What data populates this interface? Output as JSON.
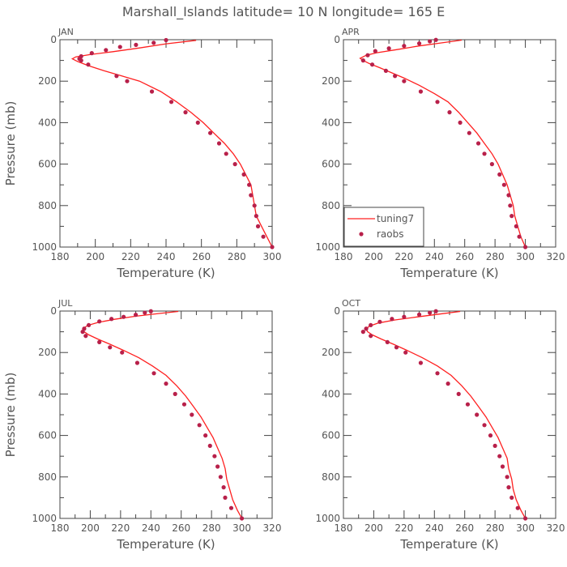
{
  "title": "Marshall_Islands  latitude= 10 N longitude= 165 E",
  "colors": {
    "model": "#ff2020",
    "obs": "#b8204a",
    "axis": "#444444",
    "text": "#555555"
  },
  "legend": {
    "model_label": "tuning7",
    "obs_label": "raobs",
    "location": "APR panel, bottom-left"
  },
  "axes": {
    "xlabel": "Temperature (K)",
    "ylabel": "Pressure (mb)"
  },
  "chart_data": [
    {
      "type": "line",
      "label": "JAN",
      "xlim": [
        180,
        300
      ],
      "ylim": [
        0,
        1000
      ],
      "xticks": [
        180,
        200,
        220,
        240,
        260,
        280,
        300
      ],
      "yticks": [
        0,
        200,
        400,
        600,
        800,
        1000
      ],
      "series": [
        {
          "name": "tuning7",
          "points": [
            [
              257,
              3
            ],
            [
              240,
              20
            ],
            [
              225,
              40
            ],
            [
              210,
              58
            ],
            [
              197,
              72
            ],
            [
              189,
              83
            ],
            [
              187,
              92
            ],
            [
              190,
              105
            ],
            [
              196,
              125
            ],
            [
              205,
              150
            ],
            [
              215,
              175
            ],
            [
              225,
              200
            ],
            [
              237,
              250
            ],
            [
              246,
              300
            ],
            [
              254,
              350
            ],
            [
              261,
              400
            ],
            [
              267,
              450
            ],
            [
              273,
              500
            ],
            [
              278,
              550
            ],
            [
              282,
              600
            ],
            [
              285,
              650
            ],
            [
              288,
              700
            ],
            [
              289,
              750
            ],
            [
              290,
              800
            ],
            [
              291,
              850
            ],
            [
              294,
              900
            ],
            [
              297,
              950
            ],
            [
              300,
              1000
            ]
          ]
        },
        {
          "name": "raobs",
          "points": [
            [
              240,
              2
            ],
            [
              233,
              15
            ],
            [
              223,
              25
            ],
            [
              214,
              35
            ],
            [
              206,
              50
            ],
            [
              198,
              65
            ],
            [
              192,
              80
            ],
            [
              191,
              92
            ],
            [
              192,
              100
            ],
            [
              196,
              120
            ],
            [
              212,
              175
            ],
            [
              218,
              200
            ],
            [
              232,
              250
            ],
            [
              243,
              300
            ],
            [
              251,
              350
            ],
            [
              258,
              400
            ],
            [
              265,
              450
            ],
            [
              270,
              500
            ],
            [
              274,
              550
            ],
            [
              279,
              600
            ],
            [
              284,
              650
            ],
            [
              287,
              700
            ],
            [
              288,
              750
            ],
            [
              290,
              800
            ],
            [
              291,
              850
            ],
            [
              292,
              900
            ],
            [
              295,
              950
            ],
            [
              300,
              1000
            ]
          ]
        }
      ]
    },
    {
      "type": "line",
      "label": "APR",
      "xlim": [
        180,
        320
      ],
      "ylim": [
        0,
        1000
      ],
      "xticks": [
        180,
        200,
        220,
        240,
        260,
        280,
        300,
        320
      ],
      "yticks": [
        0,
        200,
        400,
        600,
        800,
        1000
      ],
      "series": [
        {
          "name": "tuning7",
          "points": [
            [
              258,
              2
            ],
            [
              244,
              16
            ],
            [
              230,
              30
            ],
            [
              215,
              48
            ],
            [
              202,
              63
            ],
            [
              195,
              75
            ],
            [
              191,
              90
            ],
            [
              193,
              100
            ],
            [
              197,
              115
            ],
            [
              204,
              135
            ],
            [
              212,
              160
            ],
            [
              220,
              185
            ],
            [
              230,
              220
            ],
            [
              240,
              260
            ],
            [
              249,
              300
            ],
            [
              256,
              350
            ],
            [
              262,
              400
            ],
            [
              268,
              450
            ],
            [
              273,
              500
            ],
            [
              278,
              550
            ],
            [
              282,
              600
            ],
            [
              285,
              650
            ],
            [
              288,
              700
            ],
            [
              290,
              750
            ],
            [
              292,
              800
            ],
            [
              293,
              850
            ],
            [
              295,
              900
            ],
            [
              297,
              950
            ],
            [
              300,
              1000
            ]
          ]
        },
        {
          "name": "raobs",
          "points": [
            [
              241,
              1
            ],
            [
              237,
              8
            ],
            [
              230,
              18
            ],
            [
              220,
              30
            ],
            [
              210,
              42
            ],
            [
              201,
              55
            ],
            [
              196,
              75
            ],
            [
              193,
              100
            ],
            [
              199,
              120
            ],
            [
              208,
              150
            ],
            [
              214,
              175
            ],
            [
              220,
              200
            ],
            [
              231,
              250
            ],
            [
              242,
              300
            ],
            [
              250,
              350
            ],
            [
              257,
              400
            ],
            [
              263,
              450
            ],
            [
              269,
              500
            ],
            [
              273,
              550
            ],
            [
              278,
              600
            ],
            [
              283,
              650
            ],
            [
              286,
              700
            ],
            [
              289,
              750
            ],
            [
              290,
              800
            ],
            [
              291,
              850
            ],
            [
              294,
              900
            ],
            [
              296,
              950
            ],
            [
              300,
              1000
            ]
          ]
        }
      ]
    },
    {
      "type": "line",
      "label": "JUL",
      "xlim": [
        180,
        320
      ],
      "ylim": [
        0,
        1000
      ],
      "xticks": [
        180,
        200,
        220,
        240,
        260,
        280,
        300,
        320
      ],
      "yticks": [
        0,
        200,
        400,
        600,
        800,
        1000
      ],
      "series": [
        {
          "name": "tuning7",
          "points": [
            [
              258,
              2
            ],
            [
              245,
              12
            ],
            [
              230,
              25
            ],
            [
              216,
              40
            ],
            [
              205,
              55
            ],
            [
              198,
              70
            ],
            [
              195,
              88
            ],
            [
              196,
              100
            ],
            [
              199,
              115
            ],
            [
              205,
              135
            ],
            [
              213,
              160
            ],
            [
              222,
              190
            ],
            [
              232,
              225
            ],
            [
              241,
              265
            ],
            [
              250,
              310
            ],
            [
              257,
              360
            ],
            [
              263,
              410
            ],
            [
              268,
              460
            ],
            [
              273,
              510
            ],
            [
              277,
              560
            ],
            [
              281,
              610
            ],
            [
              284,
              660
            ],
            [
              287,
              710
            ],
            [
              289,
              760
            ],
            [
              290,
              810
            ],
            [
              292,
              860
            ],
            [
              294,
              910
            ],
            [
              297,
              960
            ],
            [
              300,
              1000
            ]
          ]
        },
        {
          "name": "raobs",
          "points": [
            [
              240,
              1
            ],
            [
              236,
              8
            ],
            [
              230,
              18
            ],
            [
              222,
              28
            ],
            [
              214,
              38
            ],
            [
              206,
              50
            ],
            [
              199,
              68
            ],
            [
              196,
              85
            ],
            [
              195,
              100
            ],
            [
              197,
              120
            ],
            [
              206,
              150
            ],
            [
              213,
              175
            ],
            [
              221,
              200
            ],
            [
              231,
              250
            ],
            [
              242,
              300
            ],
            [
              250,
              350
            ],
            [
              256,
              400
            ],
            [
              262,
              450
            ],
            [
              267,
              500
            ],
            [
              272,
              550
            ],
            [
              276,
              600
            ],
            [
              279,
              650
            ],
            [
              282,
              700
            ],
            [
              284,
              750
            ],
            [
              286,
              800
            ],
            [
              288,
              850
            ],
            [
              289,
              900
            ],
            [
              293,
              950
            ],
            [
              300,
              1000
            ]
          ]
        }
      ]
    },
    {
      "type": "line",
      "label": "OCT",
      "xlim": [
        180,
        320
      ],
      "ylim": [
        0,
        1000
      ],
      "xticks": [
        180,
        200,
        220,
        240,
        260,
        280,
        300,
        320
      ],
      "yticks": [
        0,
        200,
        400,
        600,
        800,
        1000
      ],
      "series": [
        {
          "name": "tuning7",
          "points": [
            [
              257,
              2
            ],
            [
              243,
              15
            ],
            [
              229,
              28
            ],
            [
              214,
              43
            ],
            [
              203,
              58
            ],
            [
              197,
              73
            ],
            [
              195,
              88
            ],
            [
              196,
              100
            ],
            [
              199,
              115
            ],
            [
              205,
              135
            ],
            [
              213,
              160
            ],
            [
              222,
              190
            ],
            [
              232,
              225
            ],
            [
              242,
              265
            ],
            [
              251,
              310
            ],
            [
              258,
              360
            ],
            [
              264,
              410
            ],
            [
              269,
              460
            ],
            [
              274,
              510
            ],
            [
              278,
              560
            ],
            [
              282,
              610
            ],
            [
              285,
              660
            ],
            [
              288,
              710
            ],
            [
              289,
              760
            ],
            [
              291,
              810
            ],
            [
              292,
              860
            ],
            [
              294,
              910
            ],
            [
              297,
              960
            ],
            [
              300,
              1000
            ]
          ]
        },
        {
          "name": "raobs",
          "points": [
            [
              241,
              1
            ],
            [
              237,
              8
            ],
            [
              230,
              17
            ],
            [
              220,
              28
            ],
            [
              212,
              38
            ],
            [
              204,
              52
            ],
            [
              198,
              68
            ],
            [
              195,
              85
            ],
            [
              193,
              100
            ],
            [
              198,
              120
            ],
            [
              209,
              150
            ],
            [
              215,
              175
            ],
            [
              221,
              200
            ],
            [
              231,
              250
            ],
            [
              242,
              300
            ],
            [
              249,
              350
            ],
            [
              256,
              400
            ],
            [
              262,
              450
            ],
            [
              268,
              500
            ],
            [
              273,
              550
            ],
            [
              277,
              600
            ],
            [
              280,
              650
            ],
            [
              283,
              700
            ],
            [
              285,
              750
            ],
            [
              288,
              800
            ],
            [
              289,
              850
            ],
            [
              291,
              900
            ],
            [
              295,
              950
            ],
            [
              300,
              1000
            ]
          ]
        }
      ]
    }
  ]
}
